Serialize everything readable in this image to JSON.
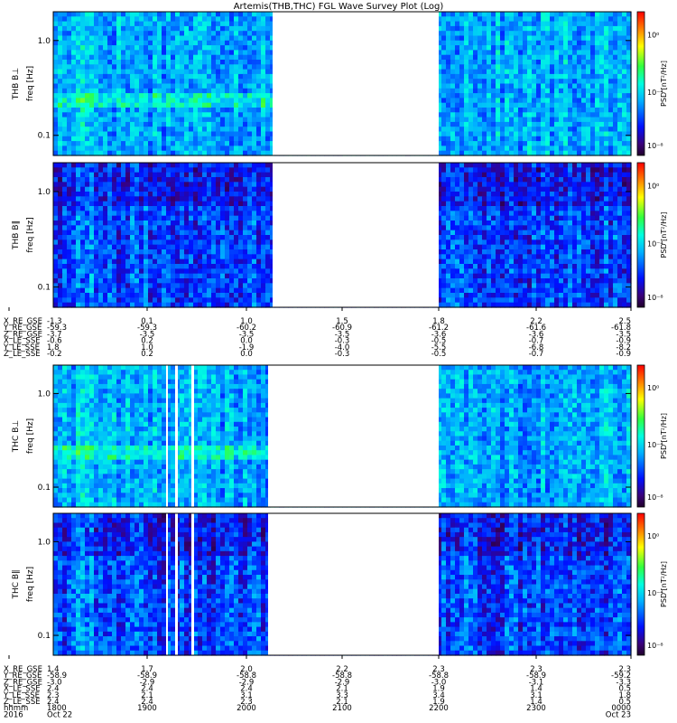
{
  "title": "Artemis(THB,THC) FGL Wave Survey Plot (Log)",
  "colorbar": {
    "label": "PSD [nT²/Hz]",
    "ticks": [
      "10⁰",
      "10⁻⁴",
      "10⁻⁸"
    ],
    "colormap": "rainbow"
  },
  "chart_data": [
    {
      "type": "heatmap",
      "panel": "THB B⊥",
      "ylabel": "freq [Hz]",
      "yscale": "log",
      "yticks": [
        "1.0",
        "0.1"
      ],
      "data_gap": true,
      "intensity": "higher"
    },
    {
      "type": "heatmap",
      "panel": "THB B∥",
      "ylabel": "freq [Hz]",
      "yscale": "log",
      "yticks": [
        "1.0",
        "0.1"
      ],
      "data_gap": true,
      "intensity": "lower"
    },
    {
      "type": "heatmap",
      "panel": "THC B⊥",
      "ylabel": "freq [Hz]",
      "yscale": "log",
      "yticks": [
        "1.0",
        "0.1"
      ],
      "data_gap": true,
      "intensity": "higher"
    },
    {
      "type": "heatmap",
      "panel": "THC B∥",
      "ylabel": "freq [Hz]",
      "yscale": "log",
      "yticks": [
        "1.0",
        "0.1"
      ],
      "data_gap": true,
      "intensity": "lower"
    }
  ],
  "ephem_thb": {
    "labels": [
      "X_RE_GSE",
      "Y_RE_GSE",
      "Z_RE_GSE",
      "X_LE_SSE",
      "Y_LE_SSE",
      "Z_LE_SSE"
    ],
    "columns": [
      [
        "-1.3",
        "-59.3",
        "-3.7",
        "-0.6",
        "1.8",
        "-0.2"
      ],
      [
        "0.1",
        "-59.3",
        "-3.5",
        "0.2",
        "1.0",
        "0.2"
      ],
      [
        "1.0",
        "-60.2",
        "-3.5",
        "0.0",
        "-1.9",
        "0.0"
      ],
      [
        "1.5",
        "-60.9",
        "-3.5",
        "-0.3",
        "-4.0",
        "-0.3"
      ],
      [
        "1.8",
        "-61.2",
        "-3.6",
        "-0.5",
        "-5.5",
        "-0.5"
      ],
      [
        "2.2",
        "-61.6",
        "-3.6",
        "-0.7",
        "-6.8",
        "-0.7"
      ],
      [
        "2.5",
        "-61.8",
        "-3.5",
        "-0.9",
        "-8.2",
        "-0.9"
      ]
    ]
  },
  "ephem_thc": {
    "labels": [
      "X_RE_GSE",
      "Y_RE_GSE",
      "Z_RE_GSE",
      "X_LE_SSE",
      "Y_LE_SSE",
      "Z_LE_SSE",
      "hhmm",
      "2016"
    ],
    "columns": [
      [
        "1.4",
        "-58.9",
        "-3.0",
        "2.4",
        "2.3",
        "2.4",
        "1800",
        "Oct 22"
      ],
      [
        "1.7",
        "-58.9",
        "-2.9",
        "2.4",
        "2.1",
        "2.4",
        "1900",
        ""
      ],
      [
        "2.0",
        "-58.8",
        "-2.9",
        "2.4",
        "3.1",
        "2.3",
        "2000",
        ""
      ],
      [
        "2.2",
        "-58.8",
        "-2.9",
        "2.1",
        "3.3",
        "2.1",
        "2100",
        ""
      ],
      [
        "2.3",
        "-58.8",
        "-3.0",
        "1.9",
        "3.4",
        "1.9",
        "2200",
        ""
      ],
      [
        "2.3",
        "-58.9",
        "-3.1",
        "1.4",
        "3.1",
        "1.4",
        "2300",
        ""
      ],
      [
        "2.3",
        "-59.2",
        "-3.3",
        "0.5",
        "1.8",
        "0.5",
        "0000",
        "Oct 23"
      ]
    ]
  }
}
